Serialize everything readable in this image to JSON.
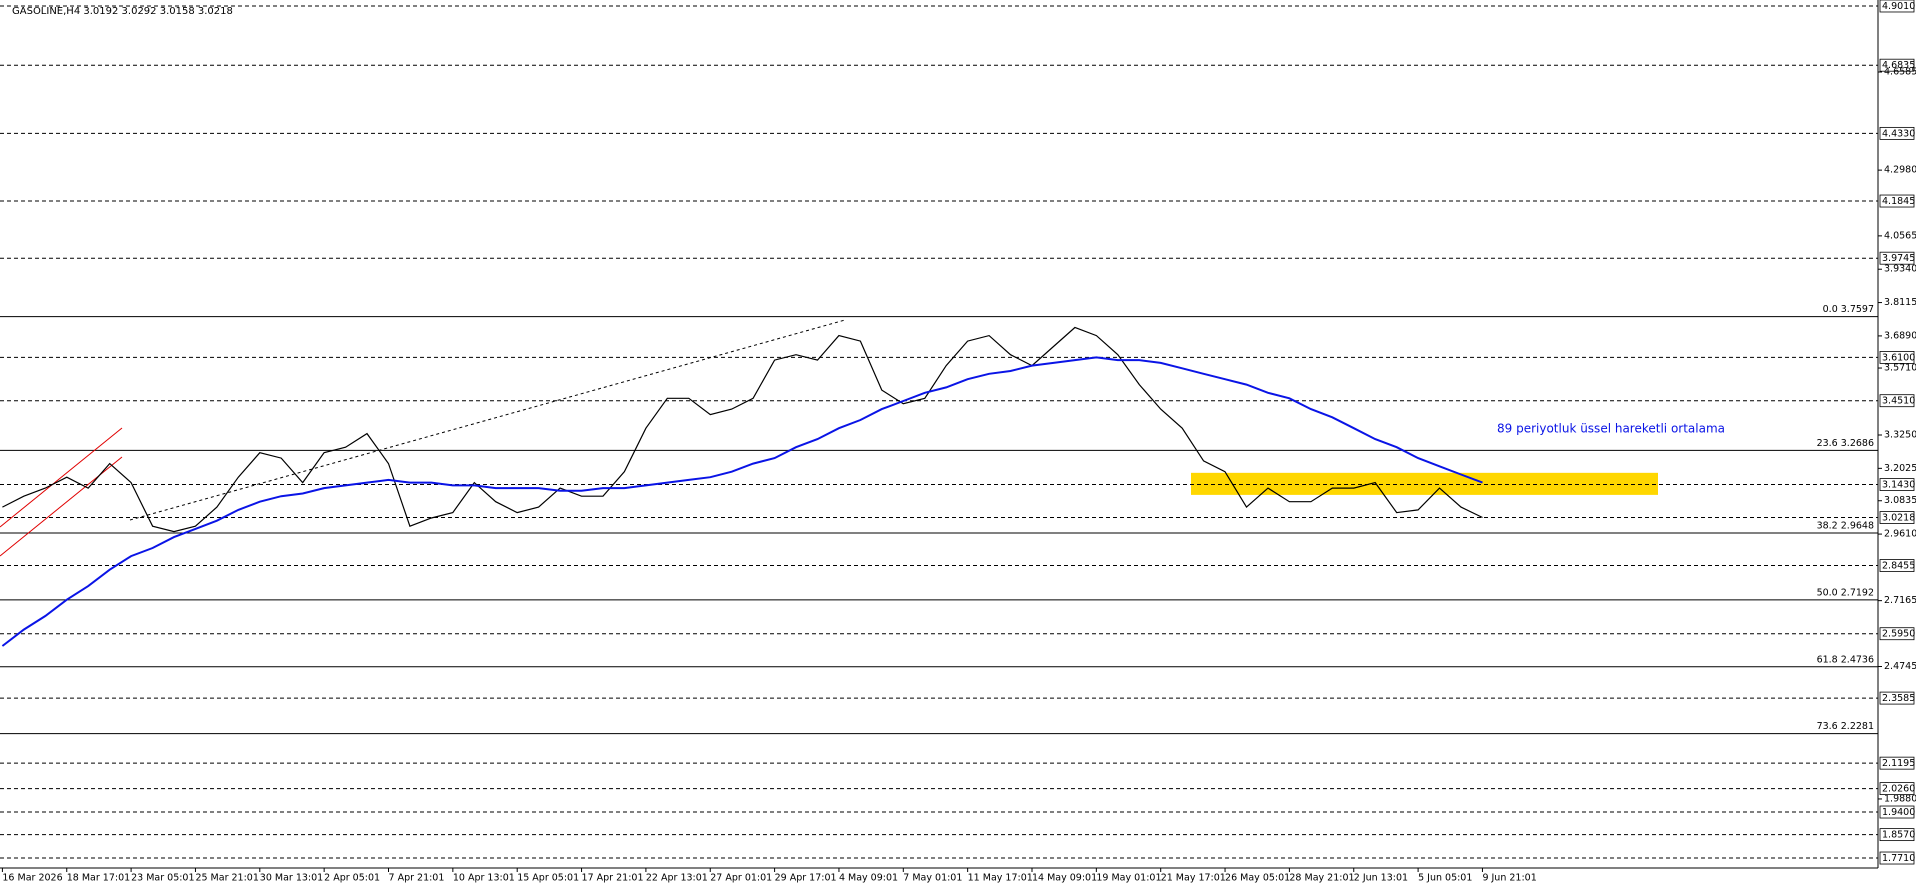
{
  "chart_data": {
    "type": "line",
    "title": "GASOLINE,H4  3.0192 3.0292 3.0158 3.0218",
    "categories": [
      "16 Mar 2026",
      null,
      null,
      "18 Mar 17:01",
      null,
      null,
      "23 Mar 05:01",
      null,
      null,
      "25 Mar 21:01",
      null,
      null,
      "30 Mar 13:01",
      null,
      null,
      "2 Apr 05:01",
      null,
      null,
      "7 Apr 21:01",
      null,
      null,
      "10 Apr 13:01",
      null,
      null,
      "15 Apr 05:01",
      null,
      null,
      "17 Apr 21:01",
      null,
      null,
      "22 Apr 13:01",
      null,
      null,
      "27 Apr 01:01",
      null,
      null,
      "29 Apr 17:01",
      null,
      null,
      "4 May 09:01",
      null,
      null,
      "7 May 01:01",
      null,
      null,
      "11 May 17:01",
      null,
      null,
      "14 May 09:01",
      null,
      null,
      "19 May 01:01",
      null,
      null,
      "21 May 17:01",
      null,
      null,
      "26 May 05:01",
      null,
      null,
      "28 May 21:01",
      null,
      null,
      "2 Jun 13:01",
      null,
      null,
      "5 Jun 05:01",
      null,
      null,
      "9 Jun 21:01"
    ],
    "series": [
      {
        "color": "#000000",
        "values": [
          3.06,
          3.1,
          3.13,
          3.17,
          3.13,
          3.22,
          3.15,
          2.99,
          2.97,
          2.99,
          3.06,
          3.17,
          3.26,
          3.24,
          3.15,
          3.26,
          3.28,
          3.33,
          3.22,
          2.99,
          3.02,
          3.04,
          3.15,
          3.08,
          3.04,
          3.06,
          3.13,
          3.1,
          3.1,
          3.19,
          3.35,
          3.46,
          3.46,
          3.4,
          3.42,
          3.46,
          3.6,
          3.62,
          3.6,
          3.69,
          3.67,
          3.49,
          3.44,
          3.46,
          3.58,
          3.67,
          3.69,
          3.62,
          3.58,
          3.65,
          3.72,
          3.69,
          3.62,
          3.51,
          3.42,
          3.35,
          3.23,
          3.19,
          3.06,
          3.13,
          3.08,
          3.08,
          3.13,
          3.13,
          3.15,
          3.04,
          3.05,
          3.13,
          3.06,
          3.0218
        ]
      },
      {
        "name": "89 periyotluk üssel hareketli ortalama",
        "color": "#0a14e6",
        "values": [
          2.55,
          2.61,
          2.66,
          2.72,
          2.77,
          2.83,
          2.88,
          2.91,
          2.95,
          2.98,
          3.01,
          3.05,
          3.08,
          3.1,
          3.11,
          3.13,
          3.14,
          3.15,
          3.16,
          3.15,
          3.15,
          3.14,
          3.14,
          3.13,
          3.13,
          3.13,
          3.12,
          3.12,
          3.13,
          3.13,
          3.14,
          3.15,
          3.16,
          3.17,
          3.19,
          3.22,
          3.24,
          3.28,
          3.31,
          3.35,
          3.38,
          3.42,
          3.45,
          3.48,
          3.5,
          3.53,
          3.55,
          3.56,
          3.58,
          3.59,
          3.6,
          3.61,
          3.6,
          3.6,
          3.59,
          3.57,
          3.55,
          3.53,
          3.51,
          3.48,
          3.46,
          3.42,
          3.39,
          3.35,
          3.31,
          3.28,
          3.24,
          3.21,
          3.18,
          3.15
        ]
      }
    ],
    "ylim": [
      1.727,
      4.923
    ],
    "levels": [
      {
        "value": 4.901,
        "label": "4.9010"
      },
      4.6835,
      {
        "value": 4.433,
        "label": "4.4330"
      },
      4.1845,
      3.9745,
      {
        "value": 3.61,
        "label": "3.6100"
      },
      {
        "value": 3.451,
        "label": "3.4510"
      },
      {
        "value": 3.143,
        "label": "3.1430"
      },
      3.0218,
      2.8455,
      {
        "value": 2.595,
        "label": "2.5950"
      },
      2.3585,
      2.1195,
      {
        "value": 2.026,
        "label": "2.0260"
      },
      {
        "value": 1.94,
        "label": "1.9400"
      },
      {
        "value": 1.857,
        "label": "1.8570"
      },
      {
        "value": 1.771,
        "label": "1.7710"
      }
    ],
    "yticks": [
      4.6585,
      {
        "value": 4.298,
        "label": "4.2980"
      },
      4.0565,
      {
        "value": 3.934,
        "label": "3.9340"
      },
      3.8115,
      {
        "value": 3.689,
        "label": "3.6890"
      },
      {
        "value": 3.571,
        "label": "3.5710"
      },
      {
        "value": 3.325,
        "label": "3.3250"
      },
      3.2025,
      3.0835,
      {
        "value": 2.961,
        "label": "2.9610"
      },
      2.7165,
      2.4745,
      {
        "value": 1.988,
        "label": "1.9880"
      }
    ],
    "fibonacci": [
      {
        "value": 3.7597,
        "label": "0.0 3.7597"
      },
      {
        "value": 3.2686,
        "label": "23.6 3.2686"
      },
      {
        "value": 2.9648,
        "label": "38.2 2.9648"
      },
      {
        "value": 2.7192,
        "label": "50.0 2.7192"
      },
      {
        "value": 2.4736,
        "label": "61.8 2.4736"
      },
      {
        "value": 2.2281,
        "label": "73.6 2.2281"
      }
    ],
    "zone": {
      "ylim": [
        3.105,
        3.186
      ],
      "color": "#ffd700"
    }
  }
}
